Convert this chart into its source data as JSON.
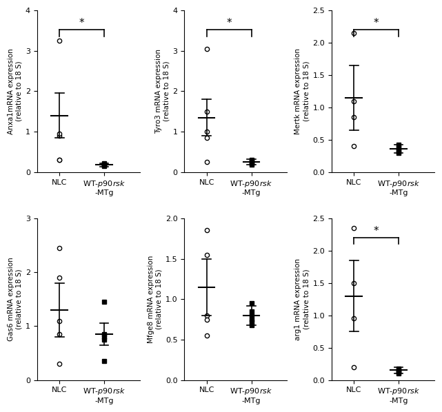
{
  "subplots": [
    {
      "ylabel": "Anxa1mRNA expression\n(relative to 18 S)",
      "ylim": [
        0,
        4
      ],
      "yticks": [
        0,
        1,
        2,
        3,
        4
      ],
      "nlc_points": [
        3.25,
        0.9,
        0.95,
        0.3,
        0.3
      ],
      "wt_points": [
        0.17,
        0.18,
        0.2,
        0.15,
        0.22
      ],
      "nlc_mean": 1.4,
      "nlc_sem_low": 0.85,
      "nlc_sem_high": 1.95,
      "wt_mean": 0.18,
      "wt_sem_low": 0.14,
      "wt_sem_high": 0.22,
      "sig": true
    },
    {
      "ylabel": "Tyro3 mRNA expression\n(relative to 18 S)",
      "ylim": [
        0,
        4
      ],
      "yticks": [
        0,
        1,
        2,
        3,
        4
      ],
      "nlc_points": [
        3.05,
        1.5,
        1.0,
        0.85,
        0.25
      ],
      "wt_points": [
        0.28,
        0.22,
        0.25,
        0.3,
        0.18
      ],
      "nlc_mean": 1.35,
      "nlc_sem_low": 0.9,
      "nlc_sem_high": 1.8,
      "wt_mean": 0.25,
      "wt_sem_low": 0.18,
      "wt_sem_high": 0.32,
      "sig": true
    },
    {
      "ylabel": "Mertk mRNA expression\n(relative to 18 S)",
      "ylim": [
        0,
        2.5
      ],
      "yticks": [
        0.0,
        0.5,
        1.0,
        1.5,
        2.0,
        2.5
      ],
      "nlc_points": [
        2.15,
        1.1,
        0.85,
        0.4
      ],
      "wt_points": [
        0.35,
        0.38,
        0.32,
        0.3,
        0.42
      ],
      "nlc_mean": 1.15,
      "nlc_sem_low": 0.65,
      "nlc_sem_high": 1.65,
      "wt_mean": 0.36,
      "wt_sem_low": 0.3,
      "wt_sem_high": 0.42,
      "sig": true
    },
    {
      "ylabel": "Gas6 mRNA expression\n(relative to 18 S)",
      "ylim": [
        0,
        3
      ],
      "yticks": [
        0,
        1,
        2,
        3
      ],
      "nlc_points": [
        2.45,
        1.9,
        1.1,
        0.85,
        0.3
      ],
      "wt_points": [
        1.45,
        0.85,
        0.8,
        0.75,
        0.35
      ],
      "nlc_mean": 1.3,
      "nlc_sem_low": 0.8,
      "nlc_sem_high": 1.8,
      "wt_mean": 0.85,
      "wt_sem_low": 0.65,
      "wt_sem_high": 1.05,
      "sig": false
    },
    {
      "ylabel": "Mfge8 mRNA expression\n(relative to 18 S)",
      "ylim": [
        0,
        2.0
      ],
      "yticks": [
        0.0,
        0.5,
        1.0,
        1.5,
        2.0
      ],
      "nlc_points": [
        1.85,
        1.55,
        0.8,
        0.75,
        0.55
      ],
      "wt_points": [
        0.95,
        0.85,
        0.8,
        0.75,
        0.72,
        0.68
      ],
      "nlc_mean": 1.15,
      "nlc_sem_low": 0.8,
      "nlc_sem_high": 1.5,
      "wt_mean": 0.8,
      "wt_sem_low": 0.68,
      "wt_sem_high": 0.92,
      "sig": false
    },
    {
      "ylabel": "arg1 mRNA expression\n(relative to 18 S)",
      "ylim": [
        0,
        2.5
      ],
      "yticks": [
        0.0,
        0.5,
        1.0,
        1.5,
        2.0,
        2.5
      ],
      "nlc_points": [
        2.35,
        1.5,
        0.95,
        0.2
      ],
      "wt_points": [
        0.18,
        0.15,
        0.13,
        0.12,
        0.1
      ],
      "nlc_mean": 1.3,
      "nlc_sem_low": 0.75,
      "nlc_sem_high": 1.85,
      "wt_mean": 0.15,
      "wt_sem_low": 0.1,
      "wt_sem_high": 0.2,
      "sig": true
    }
  ],
  "nlc_x": 0,
  "wt_x": 1,
  "background_color": "white",
  "fontsize_label": 7.5,
  "fontsize_tick": 8,
  "fontsize_sig": 11,
  "xlabel_nlc": "NLC",
  "xlabel_wt": "WT-α90rsk\n-MTg",
  "xlim": [
    -0.5,
    1.8
  ],
  "bar_width": 0.18,
  "marker_size_circle": 4.5,
  "marker_size_square": 4.0
}
